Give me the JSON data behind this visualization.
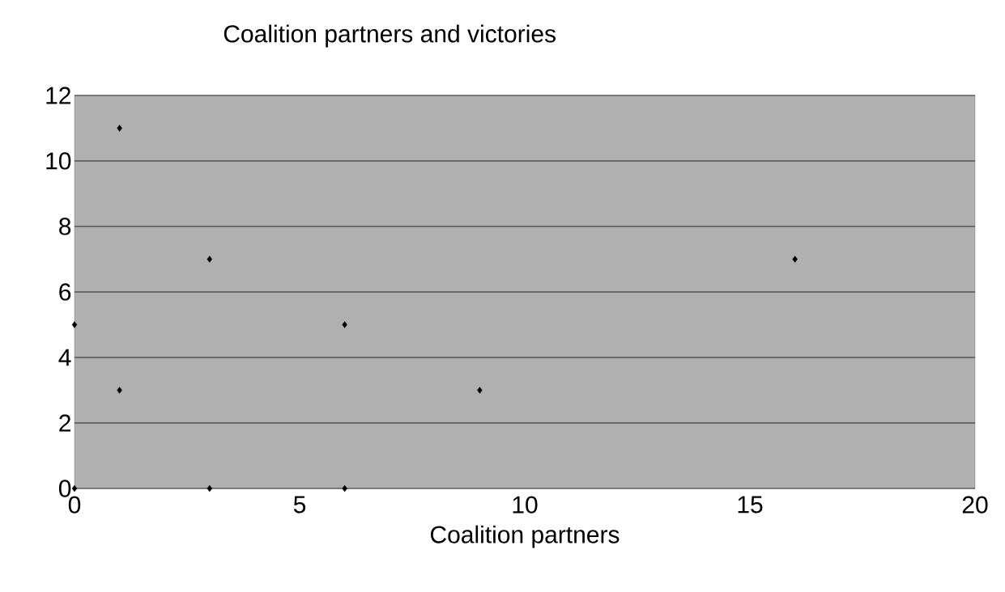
{
  "chart_data": {
    "type": "scatter",
    "title": "Coalition partners and victories",
    "xlabel": "Coalition partners",
    "x": [
      0,
      0,
      1,
      1,
      3,
      3,
      6,
      6,
      9,
      16
    ],
    "values": [
      0,
      5,
      11,
      3,
      7,
      0,
      5,
      0,
      3,
      7
    ],
    "color": "#000000",
    "xlim": [
      0,
      20
    ],
    "ylim": [
      0,
      12
    ],
    "xticks": [
      0,
      5,
      10,
      15,
      20
    ],
    "yticks": [
      0,
      2,
      4,
      6,
      8,
      10,
      12
    ],
    "grid": "y",
    "marker": "diamond"
  }
}
